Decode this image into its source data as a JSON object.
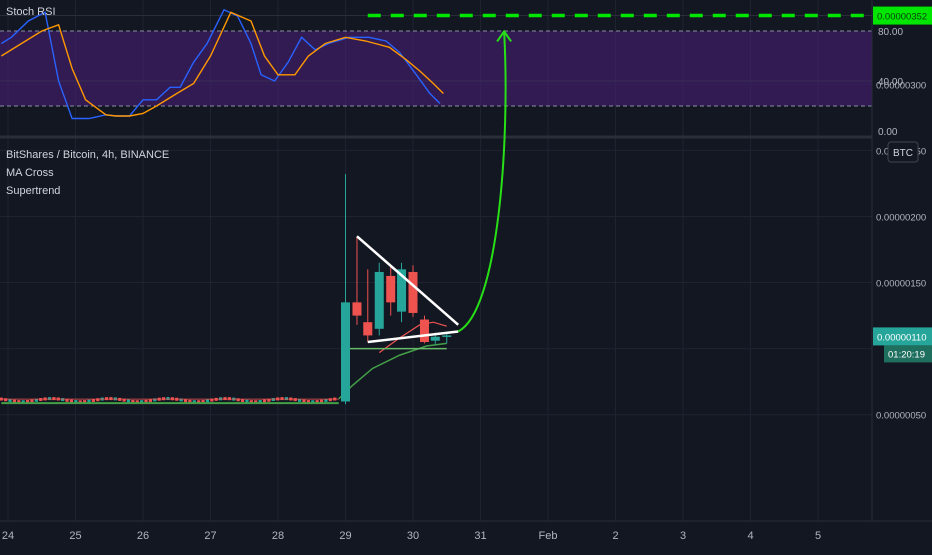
{
  "rsi_panel": {
    "label": "Stoch RSI",
    "ticks": [
      "80.00",
      "40.00",
      "0.00"
    ],
    "tick_values": [
      80,
      40,
      0
    ],
    "band": [
      20,
      80
    ],
    "colors": {
      "k": "#2962ff",
      "d": "#ff9800",
      "band_fill": "#4a1f7a"
    }
  },
  "main_panel": {
    "title": "BitShares / Bitcoin, 4h, BINANCE",
    "indicators": [
      "MA Cross",
      "Supertrend"
    ],
    "currency_badge": "BTC",
    "price_ticks": [
      "0.00000300",
      "0.00000250",
      "0.00000200",
      "0.00000150",
      "0.00000050"
    ],
    "price_tick_values": [
      300,
      250,
      200,
      150,
      50
    ],
    "target_label": "0.00000352",
    "target_value": 352,
    "current_label": "0.00000110",
    "current_value": 110,
    "countdown_label": "01:20:19",
    "colors": {
      "up": "#26a69a",
      "down": "#ef5350",
      "target": "#00e600",
      "arrow": "#27e016",
      "triangle": "#ffffff",
      "background": "#131722"
    }
  },
  "x_axis": {
    "labels": [
      "24",
      "25",
      "26",
      "27",
      "28",
      "29",
      "30",
      "31",
      "Feb",
      "2",
      "3",
      "4",
      "5"
    ]
  },
  "chart_data": [
    {
      "type": "line",
      "title": "Stoch RSI",
      "ylim": [
        0,
        100
      ],
      "x_unit": "days (24 Jan = 0)",
      "series": [
        {
          "name": "K",
          "x": [
            -0.1,
            0.05,
            0.3,
            0.55,
            0.75,
            0.95,
            1.2,
            1.45,
            1.6,
            1.8,
            2.0,
            2.2,
            2.4,
            2.55,
            2.75,
            2.95,
            3.2,
            3.4,
            3.6,
            3.75,
            3.95,
            4.15,
            4.35,
            4.55,
            4.75,
            5.05,
            5.35,
            5.6,
            5.8,
            6.05,
            6.25,
            6.4
          ],
          "values": [
            70,
            75,
            88,
            95,
            40,
            10,
            10,
            13,
            12,
            12,
            25,
            25,
            35,
            35,
            55,
            70,
            97,
            92,
            70,
            45,
            40,
            55,
            75,
            65,
            70,
            75,
            75,
            72,
            63,
            45,
            30,
            22
          ]
        },
        {
          "name": "D",
          "x": [
            -0.1,
            0.2,
            0.5,
            0.75,
            0.95,
            1.15,
            1.45,
            1.6,
            1.8,
            2.0,
            2.2,
            2.5,
            2.75,
            3.0,
            3.3,
            3.6,
            3.8,
            4.0,
            4.25,
            4.45,
            4.7,
            5.0,
            5.3,
            5.65,
            5.9,
            6.1,
            6.3,
            6.45
          ],
          "values": [
            60,
            70,
            80,
            85,
            50,
            25,
            13,
            12,
            12,
            14,
            20,
            30,
            38,
            60,
            95,
            88,
            60,
            45,
            45,
            60,
            70,
            75,
            72,
            67,
            57,
            48,
            38,
            30
          ]
        }
      ]
    },
    {
      "type": "candlestick",
      "title": "BitShares / Bitcoin, 4h, BINANCE",
      "x_unit": "days (24 Jan = 0)",
      "ylim": [
        25,
        382
      ],
      "candles": [
        {
          "x": 5.0,
          "o": 60,
          "h": 232,
          "l": 58,
          "c": 135
        },
        {
          "x": 5.17,
          "o": 135,
          "h": 185,
          "l": 118,
          "c": 125
        },
        {
          "x": 5.33,
          "o": 120,
          "h": 160,
          "l": 105,
          "c": 110
        },
        {
          "x": 5.5,
          "o": 115,
          "h": 165,
          "l": 110,
          "c": 158
        },
        {
          "x": 5.67,
          "o": 155,
          "h": 163,
          "l": 125,
          "c": 135
        },
        {
          "x": 5.83,
          "o": 128,
          "h": 165,
          "l": 120,
          "c": 160
        },
        {
          "x": 6.0,
          "o": 158,
          "h": 163,
          "l": 124,
          "c": 127
        },
        {
          "x": 6.17,
          "o": 122,
          "h": 125,
          "l": 104,
          "c": 105
        },
        {
          "x": 6.33,
          "o": 106,
          "h": 112,
          "l": 103,
          "c": 109
        },
        {
          "x": 6.5,
          "o": 109,
          "h": 112,
          "l": 104,
          "c": 110
        }
      ],
      "flat_range": {
        "x": [
          -0.1,
          4.9
        ],
        "y": 61
      },
      "annotations": [
        {
          "type": "triangle",
          "points": [
            [
              5.17,
              185
            ],
            [
              6.67,
              118
            ],
            [
              5.33,
              105
            ],
            [
              6.67,
              113
            ]
          ]
        },
        {
          "type": "target_line",
          "x": [
            5.33,
            12.3
          ],
          "y": 352
        },
        {
          "type": "projection_arrow",
          "from": [
            6.67,
            113
          ],
          "to": [
            7.35,
            340
          ]
        }
      ]
    }
  ]
}
